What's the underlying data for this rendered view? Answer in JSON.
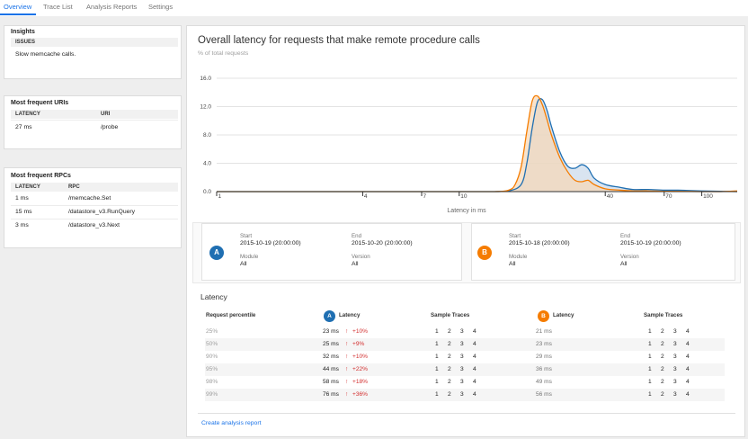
{
  "tabs": [
    {
      "label": "Overview",
      "active": true
    },
    {
      "label": "Trace List",
      "active": false
    },
    {
      "label": "Analysis Reports",
      "active": false
    },
    {
      "label": "Settings",
      "active": false
    }
  ],
  "insights": {
    "title": "Insights",
    "header": "ISSUES",
    "items": [
      "Slow memcache calls."
    ]
  },
  "uris": {
    "title": "Most frequent URIs",
    "columns": [
      "LATENCY",
      "URI"
    ],
    "rows": [
      [
        "27 ms",
        "/probe"
      ]
    ]
  },
  "rpcs": {
    "title": "Most frequent RPCs",
    "columns": [
      "LATENCY",
      "RPC"
    ],
    "rows": [
      [
        "1 ms",
        "/memcache.Set"
      ],
      [
        "15 ms",
        "/datastore_v3.RunQuery"
      ],
      [
        "3 ms",
        "/datastore_v3.Next"
      ]
    ]
  },
  "main": {
    "title": "Overall latency for requests that make remote procedure calls",
    "subtitle": "% of total requests",
    "x_axis_label": "Latency in ms"
  },
  "colors": {
    "a": "#1f6fb2",
    "b": "#f57c00",
    "a_fill": "#c9d9ea",
    "b_fill": "#f7d7b5",
    "overlap": "#cbc4b8"
  },
  "chart_data": {
    "type": "area",
    "xlabel": "Latency in ms",
    "ylabel": "",
    "x_scale": "log",
    "xlim": [
      1,
      140
    ],
    "ylim": [
      0,
      16
    ],
    "y_ticks": [
      "0.0",
      "4.0",
      "8.0",
      "12.0",
      "16.0"
    ],
    "x_ticks": [
      "1",
      "4",
      "7",
      "10",
      "40",
      "70",
      "100"
    ],
    "grid": true,
    "series": [
      {
        "name": "A",
        "x": [
          1,
          10,
          14,
          16,
          18,
          19,
          20,
          21,
          22,
          23,
          24,
          26,
          28,
          30,
          32,
          34,
          36,
          40,
          46,
          52,
          60,
          70,
          80,
          100,
          120,
          140
        ],
        "y": [
          0,
          0,
          0,
          0.1,
          1.0,
          4.0,
          9.0,
          12.6,
          13.0,
          11.5,
          9.2,
          5.6,
          3.6,
          3.3,
          3.8,
          3.3,
          1.9,
          1.0,
          0.6,
          0.3,
          0.3,
          0.2,
          0.2,
          0.1,
          0.05,
          0
        ]
      },
      {
        "name": "B",
        "x": [
          1,
          10,
          14,
          16,
          17,
          18,
          19,
          20,
          21,
          22,
          23,
          24,
          26,
          28,
          30,
          32,
          34,
          36,
          40,
          46,
          52,
          60,
          70,
          80,
          100,
          120,
          140
        ],
        "y": [
          0,
          0,
          0,
          0.2,
          1.0,
          3.5,
          8.5,
          12.8,
          13.5,
          12.3,
          10.2,
          8.0,
          4.8,
          2.8,
          1.6,
          1.4,
          1.6,
          1.0,
          0.4,
          0.2,
          0.1,
          0.1,
          0.05,
          0.05,
          0,
          0,
          0.1
        ]
      }
    ]
  },
  "compare": {
    "a": {
      "badge": "A",
      "start_label": "Start",
      "start": "2015-10-19 (20:00:00)",
      "end_label": "End",
      "end": "2015-10-20 (20:00:00)",
      "module_label": "Module",
      "module": "All",
      "version_label": "Version",
      "version": "All"
    },
    "b": {
      "badge": "B",
      "start_label": "Start",
      "start": "2015-10-18 (20:00:00)",
      "end_label": "End",
      "end": "2015-10-19 (20:00:00)",
      "module_label": "Module",
      "module": "All",
      "version_label": "Version",
      "version": "All"
    }
  },
  "latency": {
    "title": "Latency",
    "col_percentile": "Request percentile",
    "col_latency": "Latency",
    "col_samples": "Sample Traces",
    "rows": [
      {
        "pct": "25%",
        "a": "23 ms",
        "arrow": "↑",
        "delta": "+10%",
        "b": "21 ms"
      },
      {
        "pct": "50%",
        "a": "25 ms",
        "arrow": "↑",
        "delta": "+9%",
        "b": "23 ms"
      },
      {
        "pct": "90%",
        "a": "32 ms",
        "arrow": "↑",
        "delta": "+10%",
        "b": "29 ms"
      },
      {
        "pct": "95%",
        "a": "44 ms",
        "arrow": "↑",
        "delta": "+22%",
        "b": "36 ms"
      },
      {
        "pct": "98%",
        "a": "58 ms",
        "arrow": "↑",
        "delta": "+18%",
        "b": "49 ms"
      },
      {
        "pct": "99%",
        "a": "76 ms",
        "arrow": "↑",
        "delta": "+36%",
        "b": "56 ms"
      }
    ],
    "trace_links": [
      "1",
      "2",
      "3",
      "4"
    ]
  },
  "create_report": "Create analysis report"
}
